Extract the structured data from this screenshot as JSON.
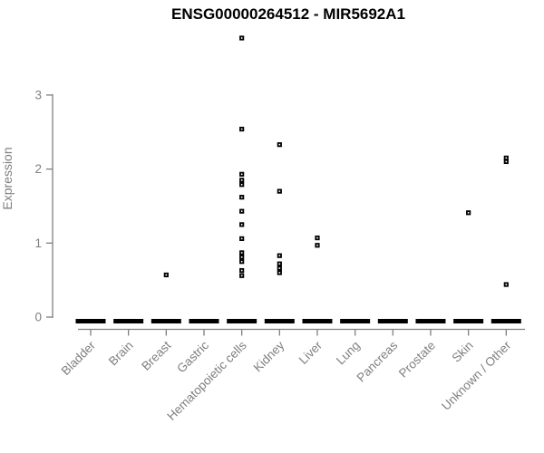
{
  "chart_data": {
    "type": "scatter",
    "subtype": "strip-plot",
    "title": "ENSG00000264512 - MIR5692A1",
    "xlabel": "",
    "ylabel": "Expression",
    "ylim": [
      0,
      3.9
    ],
    "yticks": [
      0,
      1,
      2,
      3
    ],
    "grid": false,
    "legend": "none",
    "marker": "small-open-square",
    "categories": [
      "Bladder",
      "Brain",
      "Breast",
      "Gastric",
      "Hematopoietic cells",
      "Kidney",
      "Liver",
      "Lung",
      "Pancreas",
      "Prostate",
      "Skin",
      "Unknown / Other"
    ],
    "series": [
      {
        "name": "Bladder",
        "values": []
      },
      {
        "name": "Brain",
        "values": []
      },
      {
        "name": "Breast",
        "values": [
          0.57
        ]
      },
      {
        "name": "Gastric",
        "values": []
      },
      {
        "name": "Hematopoietic cells",
        "values": [
          3.77,
          2.54,
          1.93,
          1.85,
          1.79,
          1.62,
          1.43,
          1.25,
          1.06,
          0.87,
          0.81,
          0.75,
          0.63,
          0.56
        ]
      },
      {
        "name": "Kidney",
        "values": [
          2.33,
          1.7,
          0.83,
          0.72,
          0.66,
          0.6
        ]
      },
      {
        "name": "Liver",
        "values": [
          1.07,
          0.97
        ]
      },
      {
        "name": "Lung",
        "values": []
      },
      {
        "name": "Pancreas",
        "values": []
      },
      {
        "name": "Prostate",
        "values": []
      },
      {
        "name": "Skin",
        "values": [
          1.41
        ]
      },
      {
        "name": "Unknown / Other",
        "values": [
          2.15,
          2.1,
          0.44
        ]
      }
    ],
    "zero_cluster_per_category": [
      true,
      true,
      true,
      true,
      true,
      true,
      true,
      true,
      true,
      true,
      true,
      true
    ],
    "annotations": "thick black bar at expression 0 for every category (many overlapping zero-value samples)",
    "colors": {
      "marker": "#000000",
      "marker_center": "#ffffff",
      "axis": "#7f7f7f",
      "tick_label": "#7f7f7f",
      "title": "#000000",
      "background": "#ffffff"
    }
  }
}
